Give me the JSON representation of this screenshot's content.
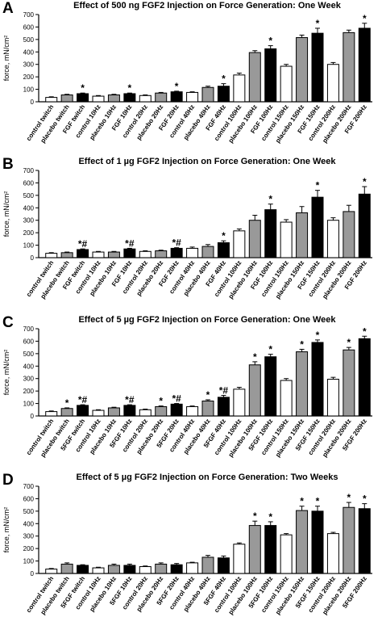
{
  "chart_data": [
    {
      "panel_label": "A",
      "type": "bar",
      "title": "Effect of 500 ng FGF2 Injection on Force Generation:  One Week",
      "ylabel": "force, mN/cm²",
      "ylim": [
        0,
        700
      ],
      "yticks": [
        0,
        100,
        200,
        300,
        400,
        500,
        600,
        700
      ],
      "categories": [
        "control twitch",
        "placebo twitch",
        "FGF twitch",
        "control 10Hz",
        "placebo 10Hz",
        "FGF 10Hz",
        "control 20Hz",
        "placebo 20Hz",
        "FGF 20Hz",
        "control 40Hz",
        "placebo 40Hz",
        "FGF 40Hz",
        "control 100Hz",
        "placebo 100Hz",
        "FGF 100Hz",
        "control 150Hz",
        "placebo 150Hz",
        "FGF 150Hz",
        "control 200Hz",
        "placebo 200Hz",
        "FGF 200Hz"
      ],
      "values": [
        35,
        55,
        65,
        45,
        55,
        65,
        50,
        70,
        80,
        75,
        115,
        125,
        215,
        395,
        425,
        285,
        515,
        550,
        300,
        555,
        590
      ],
      "errors": [
        5,
        5,
        5,
        5,
        5,
        5,
        5,
        5,
        5,
        5,
        10,
        20,
        15,
        15,
        25,
        15,
        20,
        40,
        15,
        20,
        40
      ],
      "annotations": [
        "",
        "",
        "*",
        "",
        "",
        "*",
        "",
        "",
        "*",
        "",
        "",
        "*",
        "",
        "",
        "*",
        "",
        "",
        "*",
        "",
        "",
        "*"
      ],
      "group_colors": [
        "#ffffff",
        "#999999",
        "#000000"
      ]
    },
    {
      "panel_label": "B",
      "type": "bar",
      "title": "Effect of 1 µg FGF2 Injection on Force Generation:  One Week",
      "ylabel": "force, mN/cm²",
      "ylim": [
        0,
        700
      ],
      "yticks": [
        0,
        100,
        200,
        300,
        400,
        500,
        600,
        700
      ],
      "categories": [
        "control twitch",
        "placebo twitch",
        "FGF twitch",
        "control 10Hz",
        "placebo 10Hz",
        "FGF 10Hz",
        "control 20Hz",
        "placebo 20Hz",
        "FGF 20Hz",
        "control 40Hz",
        "placebo 40Hz",
        "FGF 40Hz",
        "control 100Hz",
        "placebo 100Hz",
        "FGF 100Hz",
        "control 150Hz",
        "placebo 150Hz",
        "FGF 150Hz",
        "control 200Hz",
        "placebo 200Hz",
        "FGF 200Hz"
      ],
      "values": [
        35,
        40,
        65,
        45,
        45,
        70,
        50,
        55,
        75,
        75,
        90,
        120,
        215,
        300,
        385,
        285,
        360,
        485,
        300,
        370,
        510
      ],
      "errors": [
        5,
        5,
        5,
        5,
        5,
        5,
        5,
        5,
        5,
        10,
        15,
        15,
        15,
        40,
        45,
        20,
        50,
        55,
        20,
        50,
        60
      ],
      "annotations": [
        "",
        "",
        "*#",
        "",
        "",
        "*#",
        "",
        "",
        "*#",
        "",
        "",
        "*",
        "",
        "",
        "*",
        "",
        "",
        "*",
        "",
        "",
        "*"
      ],
      "group_colors": [
        "#ffffff",
        "#999999",
        "#000000"
      ]
    },
    {
      "panel_label": "C",
      "type": "bar",
      "title": "Effect of 5 µg FGF2 Injection on Force Generation: One Week",
      "ylabel": "force, mN/cm²",
      "ylim": [
        0,
        700
      ],
      "yticks": [
        0,
        100,
        200,
        300,
        400,
        500,
        600,
        700
      ],
      "categories": [
        "control twitch",
        "placebo twitch",
        "5FGF twitch",
        "control 10Hz",
        "placebo 10Hz",
        "5FGF 10Hz",
        "control 20Hz",
        "placebo 20Hz",
        "5FGF 20Hz",
        "control 40Hz",
        "placebo 40Hz",
        "5FGF 40Hz",
        "control 100Hz",
        "placebo 100Hz",
        "5FGF 100Hz",
        "control 150Hz",
        "placebo 150Hz",
        "5FGF 150Hz",
        "control 200Hz",
        "placebo 200Hz",
        "5FGF 200Hz"
      ],
      "values": [
        35,
        60,
        85,
        45,
        65,
        85,
        50,
        75,
        95,
        75,
        120,
        150,
        215,
        410,
        475,
        285,
        515,
        590,
        295,
        530,
        620
      ],
      "errors": [
        5,
        5,
        5,
        5,
        5,
        5,
        5,
        5,
        5,
        5,
        10,
        15,
        15,
        25,
        20,
        15,
        20,
        20,
        15,
        20,
        20
      ],
      "annotations": [
        "",
        "*",
        "*#",
        "",
        "",
        "*#",
        "",
        "*",
        "*#",
        "",
        "*",
        "*#",
        "",
        "*",
        "*",
        "",
        "*",
        "*",
        "",
        "*",
        "*"
      ],
      "group_colors": [
        "#ffffff",
        "#999999",
        "#000000"
      ]
    },
    {
      "panel_label": "D",
      "type": "bar",
      "title": "Effect of 5 µg FGF2 Injection on Force Generation: Two Weeks",
      "ylabel": "force, mN/cm²",
      "ylim": [
        0,
        700
      ],
      "yticks": [
        0,
        100,
        200,
        300,
        400,
        500,
        600,
        700
      ],
      "categories": [
        "control twitch",
        "placebo twitch",
        "5FGF twitch",
        "control 10Hz",
        "placebo 10Hz",
        "5FGF 10Hz",
        "control 20Hz",
        "placebo 20Hz",
        "5FGF 20Hz",
        "control 40Hz",
        "placebo 40Hz",
        "5FGF 40Hz",
        "control 100Hz",
        "placebo 100Hz",
        "5FGF 100Hz",
        "control 150Hz",
        "placebo 150Hz",
        "5FGF 150Hz",
        "control 200Hz",
        "placebo 200Hz",
        "5FGF 200Hz"
      ],
      "values": [
        35,
        75,
        65,
        45,
        65,
        65,
        55,
        75,
        70,
        85,
        130,
        125,
        235,
        385,
        385,
        310,
        505,
        500,
        320,
        530,
        520
      ],
      "errors": [
        5,
        10,
        5,
        5,
        10,
        10,
        5,
        10,
        10,
        5,
        15,
        15,
        10,
        35,
        30,
        10,
        35,
        40,
        10,
        40,
        40
      ],
      "annotations": [
        "",
        "",
        "",
        "",
        "",
        "",
        "",
        "",
        "",
        "",
        "",
        "",
        "",
        "*",
        "*",
        "",
        "*",
        "*",
        "",
        "*",
        "*"
      ],
      "group_colors": [
        "#ffffff",
        "#999999",
        "#000000"
      ]
    }
  ]
}
